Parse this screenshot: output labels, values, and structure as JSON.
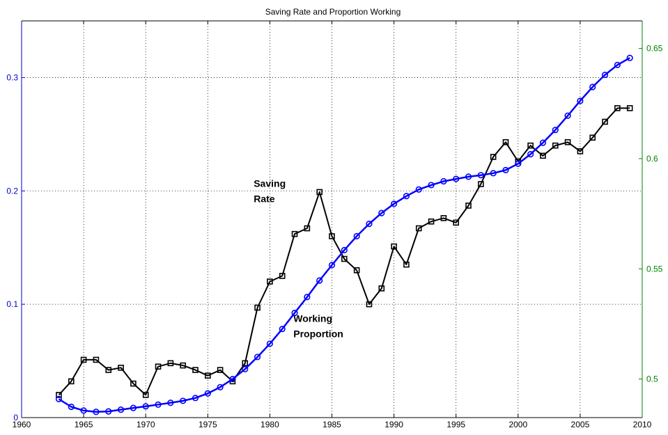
{
  "chart_data": {
    "type": "line",
    "title": "Saving Rate and Proportion Working",
    "xlabel": "",
    "ylabel": "",
    "xlim": [
      1960,
      2010
    ],
    "ylim_left": [
      0,
      0.35
    ],
    "ylim_right": [
      0.4825,
      0.6625
    ],
    "x_ticks": [
      "1960",
      "1965",
      "1970",
      "1975",
      "1980",
      "1985",
      "1990",
      "1995",
      "2000",
      "2005",
      "2010"
    ],
    "y_ticks_left": [
      "0",
      "0.1",
      "0.2",
      "0.3"
    ],
    "y_ticks_right": [
      "0.5",
      "0.55",
      "0.6",
      "0.65"
    ],
    "grid": true,
    "axis_colors": {
      "left": "#0000cc",
      "right": "#008000",
      "bottom": "#000000"
    },
    "annotations": [
      {
        "id": "saving",
        "lines": [
          "Saving",
          "Rate"
        ]
      },
      {
        "id": "working",
        "lines": [
          "Working",
          "Proportion"
        ]
      }
    ],
    "series": [
      {
        "key": "saving",
        "axis": "left",
        "color": "#000000",
        "marker": "square",
        "x": [
          1963,
          1964,
          1965,
          1966,
          1967,
          1968,
          1969,
          1970,
          1971,
          1972,
          1973,
          1974,
          1975,
          1976,
          1977,
          1978,
          1979,
          1980,
          1981,
          1982,
          1983,
          1984,
          1985,
          1986,
          1987,
          1988,
          1989,
          1990,
          1991,
          1992,
          1993,
          1994,
          1995,
          1996,
          1997,
          1998,
          1999,
          2000,
          2001,
          2002,
          2003,
          2004,
          2005,
          2006,
          2007,
          2008,
          2009
        ],
        "values": [
          0.02,
          0.032,
          0.051,
          0.051,
          0.042,
          0.044,
          0.03,
          0.02,
          0.045,
          0.048,
          0.046,
          0.042,
          0.037,
          0.042,
          0.032,
          0.048,
          0.097,
          0.12,
          0.125,
          0.162,
          0.167,
          0.199,
          0.16,
          0.14,
          0.13,
          0.1,
          0.114,
          0.151,
          0.135,
          0.167,
          0.173,
          0.176,
          0.172,
          0.187,
          0.206,
          0.23,
          0.243,
          0.226,
          0.24,
          0.231,
          0.24,
          0.243,
          0.235,
          0.247,
          0.261,
          0.273,
          0.273
        ]
      },
      {
        "key": "working",
        "axis": "right",
        "color": "#0000ff",
        "marker": "circle",
        "x": [
          1963,
          1964,
          1965,
          1966,
          1967,
          1968,
          1969,
          1970,
          1971,
          1972,
          1973,
          1974,
          1975,
          1976,
          1977,
          1978,
          1979,
          1980,
          1981,
          1982,
          1983,
          1984,
          1985,
          1986,
          1987,
          1988,
          1989,
          1990,
          1991,
          1992,
          1993,
          1994,
          1995,
          1996,
          1997,
          1998,
          1999,
          2000,
          2001,
          2002,
          2003,
          2004,
          2005,
          2006,
          2007,
          2008,
          2009
        ],
        "values": [
          0.4909,
          0.4874,
          0.4857,
          0.4851,
          0.4853,
          0.4861,
          0.4869,
          0.4876,
          0.4884,
          0.4892,
          0.4901,
          0.4914,
          0.4935,
          0.4963,
          0.5,
          0.5045,
          0.51,
          0.516,
          0.5227,
          0.53,
          0.5372,
          0.5447,
          0.5517,
          0.5585,
          0.5648,
          0.5704,
          0.5753,
          0.5795,
          0.583,
          0.586,
          0.588,
          0.5897,
          0.5908,
          0.5918,
          0.5925,
          0.5934,
          0.5948,
          0.5977,
          0.602,
          0.6072,
          0.613,
          0.6195,
          0.6262,
          0.6325,
          0.638,
          0.6425,
          0.6457
        ]
      }
    ]
  }
}
